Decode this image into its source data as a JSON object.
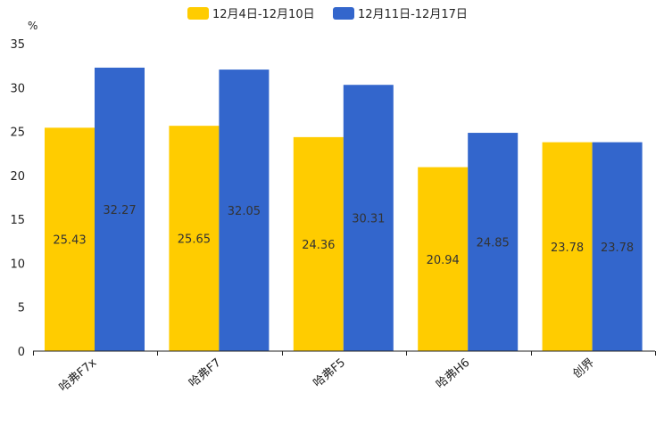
{
  "chart_data": {
    "type": "bar",
    "title": "",
    "xlabel": "",
    "ylabel": "%",
    "ylim": [
      0,
      35
    ],
    "yticks": [
      0,
      5,
      10,
      15,
      20,
      25,
      30,
      35
    ],
    "grid": false,
    "legend_position": "top-center",
    "categories": [
      "哈弗F7x",
      "哈弗F7",
      "哈弗F5",
      "哈弗H6",
      "创界"
    ],
    "series": [
      {
        "name": "12月4日-12月10日",
        "color": "#FFCC00",
        "values": [
          25.43,
          25.65,
          24.36,
          20.94,
          23.78
        ]
      },
      {
        "name": "12月11日-12月17日",
        "color": "#3366CC",
        "values": [
          32.27,
          32.05,
          30.31,
          24.85,
          23.78
        ]
      }
    ]
  }
}
